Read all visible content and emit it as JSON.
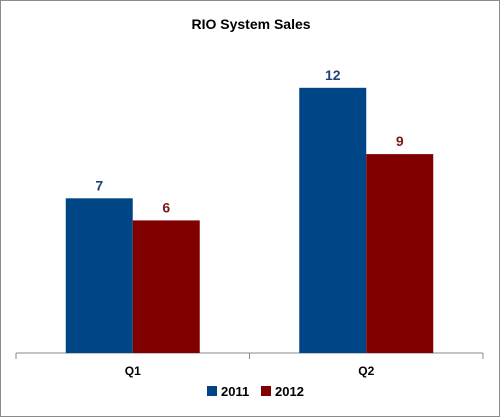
{
  "chart_data": {
    "type": "bar",
    "title": "RIO System Sales",
    "categories": [
      "Q1",
      "Q2"
    ],
    "series": [
      {
        "name": "2011",
        "values": [
          7,
          12
        ],
        "color": "#004586"
      },
      {
        "name": "2012",
        "values": [
          6,
          9
        ],
        "color": "#800000"
      }
    ],
    "label_colors": {
      "2011": "#1f3f7a",
      "2012": "#7a1a1a"
    },
    "ylim": [
      0,
      14
    ],
    "grid": false,
    "legend_position": "bottom",
    "xlabel": "",
    "ylabel": ""
  }
}
